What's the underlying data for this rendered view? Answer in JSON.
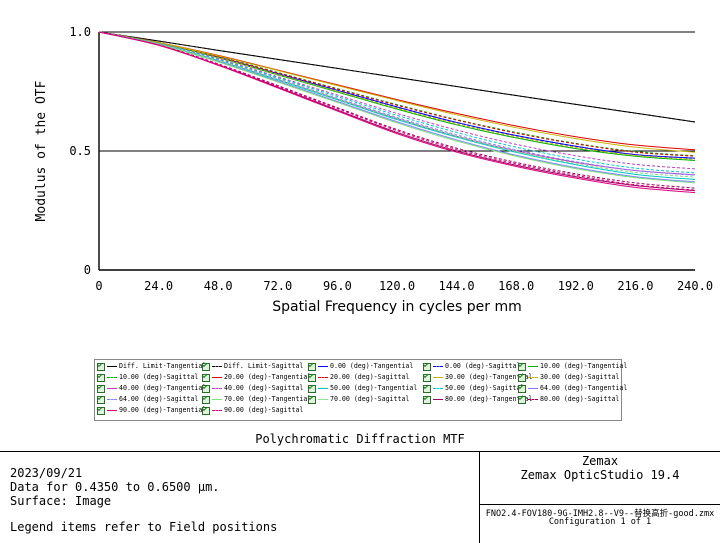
{
  "chart_data": {
    "type": "line",
    "title": "Polychromatic Diffraction MTF",
    "xlabel": "Spatial Frequency in cycles per mm",
    "ylabel": "Modulus of the OTF",
    "xlim": [
      0,
      240
    ],
    "ylim": [
      0,
      1
    ],
    "x_ticks": [
      "0",
      "24.0",
      "48.0",
      "72.0",
      "96.0",
      "120.0",
      "144.0",
      "168.0",
      "192.0",
      "216.0",
      "240.0"
    ],
    "y_ticks": [
      "0",
      "0.5",
      "1.0"
    ],
    "grid": true,
    "legend_position": "below",
    "x": [
      0,
      24,
      48,
      72,
      96,
      120,
      144,
      168,
      192,
      216,
      240
    ],
    "series": [
      {
        "name": "Diff. Limit-Tangential",
        "color": "#000000",
        "dash": "solid",
        "values": [
          1.0,
          0.962,
          0.923,
          0.885,
          0.847,
          0.809,
          0.771,
          0.733,
          0.696,
          0.659,
          0.622
        ]
      },
      {
        "name": "Diff. Limit-Sagittal",
        "color": "#000000",
        "dash": "dashed",
        "values": [
          1.0,
          0.962,
          0.923,
          0.885,
          0.847,
          0.809,
          0.771,
          0.733,
          0.696,
          0.659,
          0.622
        ]
      },
      {
        "name": "0.00 (deg)-Tangential",
        "color": "#0000ff",
        "dash": "solid",
        "values": [
          1.0,
          0.955,
          0.895,
          0.825,
          0.755,
          0.685,
          0.62,
          0.565,
          0.52,
          0.485,
          0.47
        ]
      },
      {
        "name": "0.00 (deg)-Sagittal",
        "color": "#0000ff",
        "dash": "dashed",
        "values": [
          1.0,
          0.955,
          0.895,
          0.825,
          0.755,
          0.685,
          0.62,
          0.565,
          0.52,
          0.485,
          0.47
        ]
      },
      {
        "name": "10.00 (deg)-Tangential",
        "color": "#00b000",
        "dash": "solid",
        "values": [
          1.0,
          0.954,
          0.892,
          0.82,
          0.748,
          0.676,
          0.61,
          0.555,
          0.51,
          0.478,
          0.46
        ]
      },
      {
        "name": "10.00 (deg)-Sagittal",
        "color": "#00b000",
        "dash": "dashed",
        "values": [
          1.0,
          0.955,
          0.898,
          0.83,
          0.762,
          0.695,
          0.632,
          0.578,
          0.532,
          0.498,
          0.48
        ]
      },
      {
        "name": "20.00 (deg)-Tangential",
        "color": "#e00000",
        "dash": "solid",
        "values": [
          1.0,
          0.956,
          0.902,
          0.84,
          0.778,
          0.716,
          0.658,
          0.605,
          0.56,
          0.525,
          0.505
        ]
      },
      {
        "name": "20.00 (deg)-Sagittal",
        "color": "#e00000",
        "dash": "dashed",
        "values": [
          1.0,
          0.955,
          0.896,
          0.828,
          0.76,
          0.692,
          0.63,
          0.575,
          0.53,
          0.495,
          0.478
        ]
      },
      {
        "name": "30.00 (deg)-Tangential",
        "color": "#c8b400",
        "dash": "solid",
        "values": [
          1.0,
          0.956,
          0.9,
          0.838,
          0.775,
          0.712,
          0.652,
          0.598,
          0.552,
          0.516,
          0.495
        ]
      },
      {
        "name": "30.00 (deg)-Sagittal",
        "color": "#c8b400",
        "dash": "dashed",
        "values": [
          1.0,
          0.954,
          0.893,
          0.822,
          0.751,
          0.68,
          0.615,
          0.56,
          0.515,
          0.482,
          0.465
        ]
      },
      {
        "name": "40.00 (deg)-Tangential",
        "color": "#c040c0",
        "dash": "solid",
        "values": [
          1.0,
          0.95,
          0.88,
          0.8,
          0.718,
          0.636,
          0.562,
          0.5,
          0.452,
          0.418,
          0.4
        ]
      },
      {
        "name": "40.00 (deg)-Sagittal",
        "color": "#c040c0",
        "dash": "dashed",
        "values": [
          1.0,
          0.953,
          0.888,
          0.812,
          0.735,
          0.658,
          0.588,
          0.528,
          0.48,
          0.444,
          0.425
        ]
      },
      {
        "name": "50.00 (deg)-Tangential",
        "color": "#00c8c8",
        "dash": "solid",
        "values": [
          1.0,
          0.95,
          0.879,
          0.798,
          0.715,
          0.632,
          0.558,
          0.494,
          0.442,
          0.402,
          0.38
        ]
      },
      {
        "name": "50.00 (deg)-Sagittal",
        "color": "#00c8c8",
        "dash": "dashed",
        "values": [
          1.0,
          0.952,
          0.885,
          0.808,
          0.729,
          0.65,
          0.578,
          0.516,
          0.466,
          0.428,
          0.408
        ]
      },
      {
        "name": "64.00 (deg)-Tangential",
        "color": "#8080ff",
        "dash": "solid",
        "values": [
          1.0,
          0.949,
          0.876,
          0.793,
          0.708,
          0.623,
          0.547,
          0.482,
          0.43,
          0.392,
          0.37
        ]
      },
      {
        "name": "64.00 (deg)-Sagittal",
        "color": "#8080ff",
        "dash": "dashed",
        "values": [
          1.0,
          0.951,
          0.882,
          0.803,
          0.722,
          0.641,
          0.568,
          0.505,
          0.455,
          0.418,
          0.398
        ]
      },
      {
        "name": "70.00 (deg)-Tangential",
        "color": "#80e080",
        "dash": "solid",
        "values": [
          1.0,
          0.948,
          0.874,
          0.79,
          0.704,
          0.618,
          0.542,
          0.478,
          0.426,
          0.388,
          0.366
        ]
      },
      {
        "name": "70.00 (deg)-Sagittal",
        "color": "#80e080",
        "dash": "dashed",
        "values": [
          1.0,
          0.95,
          0.88,
          0.8,
          0.718,
          0.636,
          0.562,
          0.498,
          0.447,
          0.41,
          0.39
        ]
      },
      {
        "name": "80.00 (deg)-Tangential",
        "color": "#a00060",
        "dash": "solid",
        "values": [
          1.0,
          0.945,
          0.862,
          0.768,
          0.672,
          0.578,
          0.5,
          0.44,
          0.392,
          0.355,
          0.333
        ]
      },
      {
        "name": "80.00 (deg)-Sagittal",
        "color": "#a00060",
        "dash": "dashed",
        "values": [
          1.0,
          0.946,
          0.866,
          0.775,
          0.682,
          0.59,
          0.512,
          0.452,
          0.404,
          0.366,
          0.344
        ]
      },
      {
        "name": "90.00 (deg)-Tangential",
        "color": "#e00080",
        "dash": "solid",
        "values": [
          1.0,
          0.944,
          0.86,
          0.765,
          0.668,
          0.573,
          0.495,
          0.435,
          0.386,
          0.347,
          0.325
        ]
      },
      {
        "name": "90.00 (deg)-Sagittal",
        "color": "#e00080",
        "dash": "dashed",
        "values": [
          1.0,
          0.945,
          0.864,
          0.772,
          0.678,
          0.585,
          0.506,
          0.446,
          0.398,
          0.358,
          0.336
        ]
      }
    ]
  },
  "info": {
    "date": "2023/09/21",
    "data_for": "Data for 0.4350 to 0.6500 µm.",
    "surface": "Surface: Image",
    "legend_note": "Legend items refer to Field positions",
    "company": "Zemax",
    "product": "Zemax OpticStudio 19.4",
    "filename": "FNO2.4-FOV180-9G-IMH2.8--V9--替换高折-good.zmx",
    "configuration": "Configuration 1 of 1"
  }
}
